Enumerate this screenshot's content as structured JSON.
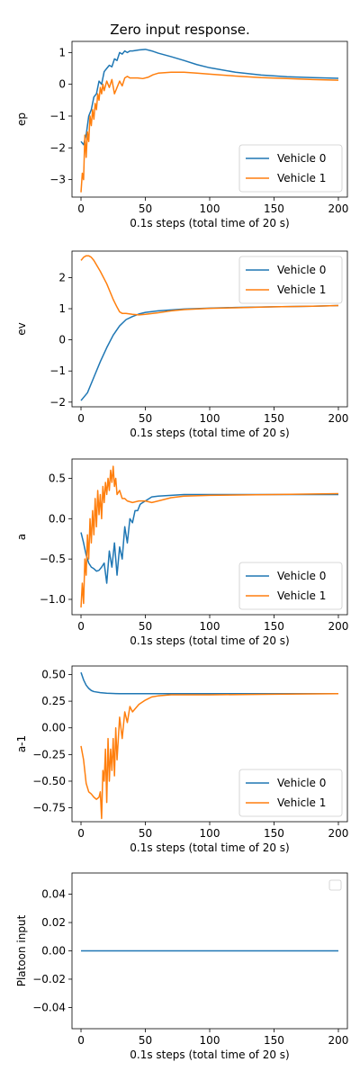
{
  "figure_title": "Zero input response.",
  "chart_data": [
    {
      "type": "line",
      "ylabel": "ep",
      "xlabel": "0.1s steps (total time of 20 s)",
      "xlim": [
        -7,
        207
      ],
      "ylim": [
        -3.55,
        1.35
      ],
      "xticks": [
        0,
        50,
        100,
        150,
        200
      ],
      "yticks": [
        -3,
        -2,
        -1,
        0,
        1
      ],
      "legend": "bottom-right",
      "series": [
        {
          "name": "Vehicle 0",
          "color": "#1f77b4",
          "x": [
            0,
            2,
            4,
            6,
            8,
            10,
            12,
            14,
            16,
            18,
            20,
            22,
            24,
            26,
            28,
            30,
            32,
            34,
            36,
            38,
            40,
            45,
            50,
            55,
            60,
            70,
            80,
            90,
            100,
            120,
            140,
            160,
            180,
            200
          ],
          "y": [
            -1.8,
            -1.9,
            -1.6,
            -1.0,
            -0.8,
            -0.4,
            -0.3,
            0.1,
            0.0,
            0.4,
            0.5,
            0.6,
            0.55,
            0.8,
            0.75,
            1.0,
            0.95,
            1.05,
            1.0,
            1.05,
            1.05,
            1.08,
            1.1,
            1.05,
            0.98,
            0.87,
            0.75,
            0.62,
            0.52,
            0.38,
            0.29,
            0.24,
            0.21,
            0.19
          ]
        },
        {
          "name": "Vehicle 1",
          "color": "#ff7f0e",
          "x": [
            0,
            1,
            2,
            3,
            4,
            5,
            6,
            7,
            8,
            9,
            10,
            11,
            12,
            13,
            14,
            15,
            16,
            17,
            18,
            19,
            20,
            22,
            24,
            26,
            28,
            30,
            32,
            34,
            36,
            38,
            40,
            44,
            48,
            52,
            56,
            60,
            70,
            80,
            90,
            100,
            120,
            140,
            160,
            180,
            200
          ],
          "y": [
            -3.4,
            -2.8,
            -3.0,
            -1.6,
            -2.3,
            -1.5,
            -1.8,
            -1.0,
            -1.3,
            -0.8,
            -1.1,
            -0.6,
            -0.8,
            -0.3,
            -0.5,
            -0.1,
            -0.3,
            0.0,
            -0.2,
            -0.05,
            0.1,
            -0.1,
            0.15,
            -0.3,
            -0.1,
            0.1,
            -0.05,
            0.2,
            0.25,
            0.2,
            0.2,
            0.2,
            0.18,
            0.22,
            0.3,
            0.35,
            0.38,
            0.38,
            0.35,
            0.32,
            0.26,
            0.21,
            0.18,
            0.15,
            0.13
          ]
        }
      ]
    },
    {
      "type": "line",
      "ylabel": "ev",
      "xlabel": "0.1s steps (total time of 20 s)",
      "xlim": [
        -7,
        207
      ],
      "ylim": [
        -2.15,
        2.85
      ],
      "xticks": [
        0,
        50,
        100,
        150,
        200
      ],
      "yticks": [
        -2,
        -1,
        0,
        1,
        2
      ],
      "legend": "top-right",
      "series": [
        {
          "name": "Vehicle 0",
          "color": "#1f77b4",
          "x": [
            0,
            5,
            10,
            15,
            20,
            25,
            30,
            35,
            40,
            45,
            50,
            60,
            70,
            80,
            100,
            120,
            150,
            180,
            200
          ],
          "y": [
            -1.95,
            -1.7,
            -1.2,
            -0.7,
            -0.25,
            0.15,
            0.45,
            0.65,
            0.75,
            0.83,
            0.88,
            0.93,
            0.96,
            0.99,
            1.02,
            1.04,
            1.06,
            1.08,
            1.1
          ]
        },
        {
          "name": "Vehicle 1",
          "color": "#ff7f0e",
          "x": [
            0,
            2,
            4,
            6,
            8,
            10,
            15,
            20,
            25,
            28,
            30,
            32,
            35,
            40,
            45,
            50,
            60,
            70,
            80,
            100,
            120,
            150,
            180,
            200
          ],
          "y": [
            2.55,
            2.65,
            2.7,
            2.7,
            2.65,
            2.55,
            2.2,
            1.8,
            1.3,
            1.05,
            0.9,
            0.85,
            0.85,
            0.82,
            0.8,
            0.82,
            0.87,
            0.93,
            0.97,
            1.01,
            1.03,
            1.06,
            1.08,
            1.1
          ]
        }
      ]
    },
    {
      "type": "line",
      "ylabel": "a",
      "xlabel": "0.1s steps (total time of 20 s)",
      "xlim": [
        -7,
        207
      ],
      "ylim": [
        -1.19,
        0.74
      ],
      "xticks": [
        0,
        50,
        100,
        150,
        200
      ],
      "yticks": [
        -1.0,
        -0.5,
        0.0,
        0.5
      ],
      "legend": "bottom-right",
      "series": [
        {
          "name": "Vehicle 0",
          "color": "#1f77b4",
          "x": [
            0,
            2,
            4,
            6,
            8,
            10,
            12,
            14,
            16,
            18,
            20,
            22,
            24,
            26,
            28,
            30,
            32,
            34,
            36,
            38,
            40,
            42,
            44,
            46,
            48,
            50,
            55,
            60,
            70,
            80,
            90,
            100,
            150,
            200
          ],
          "y": [
            -0.17,
            -0.3,
            -0.45,
            -0.55,
            -0.6,
            -0.62,
            -0.65,
            -0.64,
            -0.6,
            -0.55,
            -0.8,
            -0.4,
            -0.6,
            -0.3,
            -0.7,
            -0.35,
            -0.5,
            -0.1,
            -0.3,
            0.0,
            -0.05,
            0.1,
            0.1,
            0.18,
            0.2,
            0.22,
            0.27,
            0.28,
            0.29,
            0.3,
            0.3,
            0.3,
            0.3,
            0.3
          ]
        },
        {
          "name": "Vehicle 1",
          "color": "#ff7f0e",
          "x": [
            0,
            1,
            2,
            3,
            4,
            5,
            6,
            7,
            8,
            9,
            10,
            11,
            12,
            13,
            14,
            15,
            16,
            17,
            18,
            19,
            20,
            21,
            22,
            23,
            24,
            25,
            26,
            27,
            28,
            30,
            32,
            34,
            36,
            40,
            45,
            50,
            55,
            60,
            70,
            80,
            100,
            150,
            200
          ],
          "y": [
            -1.1,
            -0.8,
            -1.05,
            -0.5,
            -0.7,
            -0.2,
            -0.5,
            0.0,
            -0.3,
            0.1,
            -0.2,
            0.25,
            -0.1,
            0.35,
            0.05,
            0.3,
            0.0,
            0.4,
            0.2,
            0.45,
            0.3,
            0.5,
            0.35,
            0.6,
            0.45,
            0.65,
            0.4,
            0.5,
            0.3,
            0.35,
            0.25,
            0.25,
            0.22,
            0.2,
            0.22,
            0.22,
            0.2,
            0.22,
            0.26,
            0.28,
            0.29,
            0.3,
            0.31
          ]
        }
      ]
    },
    {
      "type": "line",
      "ylabel": "a-1",
      "xlabel": "0.1s steps (total time of 20 s)",
      "xlim": [
        -7,
        207
      ],
      "ylim": [
        -0.88,
        0.58
      ],
      "xticks": [
        0,
        50,
        100,
        150,
        200
      ],
      "yticks": [
        -0.75,
        -0.5,
        -0.25,
        0.0,
        0.25,
        0.5
      ],
      "legend": "bottom-right",
      "series": [
        {
          "name": "Vehicle 0",
          "color": "#1f77b4",
          "x": [
            0,
            2,
            4,
            6,
            8,
            10,
            15,
            20,
            30,
            50,
            100,
            150,
            200
          ],
          "y": [
            0.52,
            0.45,
            0.4,
            0.37,
            0.35,
            0.34,
            0.33,
            0.325,
            0.32,
            0.32,
            0.32,
            0.32,
            0.32
          ]
        },
        {
          "name": "Vehicle 1",
          "color": "#ff7f0e",
          "x": [
            0,
            2,
            4,
            6,
            8,
            10,
            12,
            14,
            15,
            16,
            17,
            18,
            19,
            20,
            21,
            22,
            23,
            24,
            25,
            26,
            27,
            28,
            30,
            32,
            34,
            36,
            38,
            40,
            45,
            50,
            55,
            60,
            70,
            80,
            100,
            150,
            200
          ],
          "y": [
            -0.17,
            -0.3,
            -0.52,
            -0.6,
            -0.62,
            -0.65,
            -0.67,
            -0.65,
            -0.6,
            -0.85,
            -0.4,
            -0.5,
            -0.2,
            -0.7,
            -0.1,
            -0.5,
            -0.2,
            -0.4,
            -0.1,
            -0.45,
            0.0,
            -0.3,
            0.1,
            -0.1,
            0.15,
            0.05,
            0.2,
            0.15,
            0.22,
            0.26,
            0.29,
            0.3,
            0.31,
            0.31,
            0.31,
            0.315,
            0.32
          ]
        }
      ]
    },
    {
      "type": "line",
      "ylabel": "Platoon input",
      "xlabel": "0.1s steps (total time of 20 s)",
      "xlim": [
        -7,
        207
      ],
      "ylim": [
        -0.055,
        0.055
      ],
      "xticks": [
        0,
        50,
        100,
        150,
        200
      ],
      "yticks": [
        -0.04,
        -0.02,
        0.0,
        0.02,
        0.04
      ],
      "legend": "top-right-empty",
      "series": [
        {
          "color": "#1f77b4",
          "x": [
            0,
            200
          ],
          "y": [
            0,
            0
          ]
        }
      ]
    }
  ]
}
